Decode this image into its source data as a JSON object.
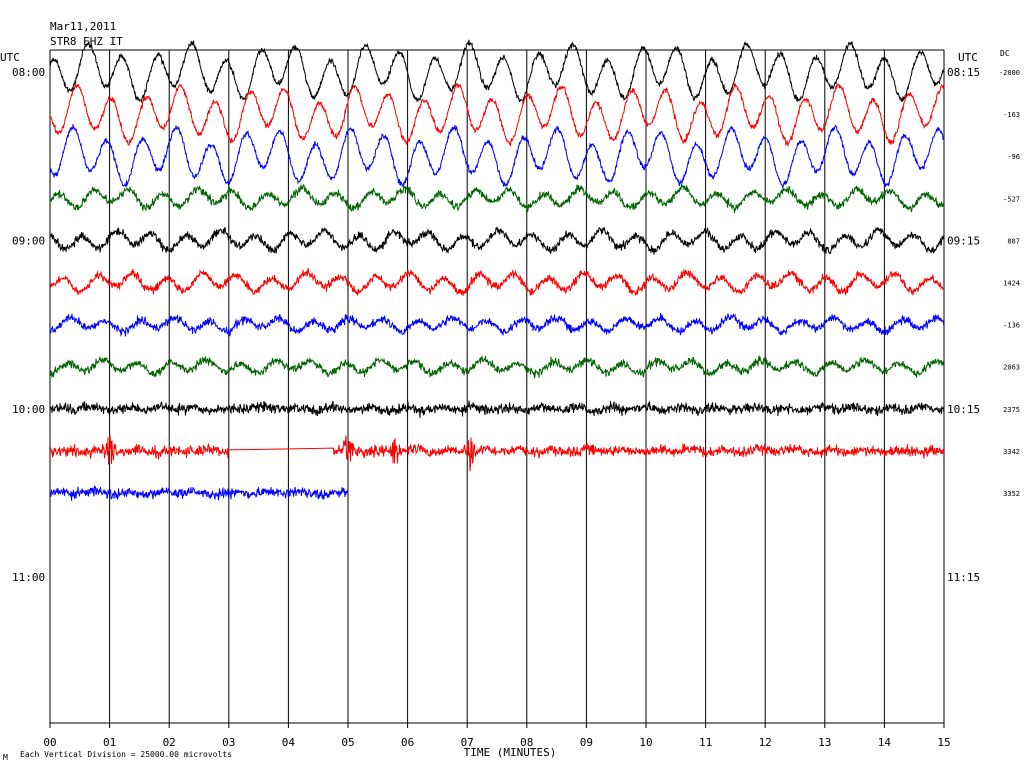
{
  "header": {
    "date": "Mar11,2011",
    "station": "STR8 EHZ IT"
  },
  "left_axis": {
    "unit": "UTC",
    "hour_labels": [
      "08:00",
      "09:00",
      "10:00",
      "11:00"
    ]
  },
  "right_axis": {
    "unit": "UTC",
    "hour_labels": [
      "08:15",
      "09:15",
      "10:15",
      "11:15"
    ],
    "dc_title": "DC",
    "dc_values": [
      "-2800",
      "-163",
      "-96",
      "-527",
      "887",
      "1424",
      "-136",
      "2063",
      "2375",
      "3342",
      "3352"
    ]
  },
  "x_axis": {
    "title": "TIME (MINUTES)",
    "ticks": [
      "00",
      "01",
      "02",
      "03",
      "04",
      "05",
      "06",
      "07",
      "08",
      "09",
      "10",
      "11",
      "12",
      "13",
      "14",
      "15"
    ]
  },
  "footer": {
    "scale_note": "Each Vertical Division = 25000.00 microvolts"
  },
  "colors": {
    "trace_cycle": [
      "#000000",
      "#ff0000",
      "#0000ff",
      "#006400"
    ],
    "grid": "#000000"
  },
  "chart_data": {
    "type": "line",
    "title": "STR8 EHZ IT",
    "subtitle": "Mar11,2011",
    "xlabel": "TIME (MINUTES)",
    "xlim": [
      0,
      15
    ],
    "rows_per_hour": 4,
    "minutes_per_row": 15,
    "series": [
      {
        "start_utc": "08:00",
        "color": "black",
        "dc_offset": -2800,
        "minutes_recorded": [
          0,
          15
        ],
        "activity": "large long-period oscillation"
      },
      {
        "start_utc": "08:15",
        "color": "red",
        "dc_offset": -163,
        "minutes_recorded": [
          0,
          15
        ],
        "activity": "large long-period oscillation"
      },
      {
        "start_utc": "08:30",
        "color": "blue",
        "dc_offset": -96,
        "minutes_recorded": [
          0,
          15
        ],
        "activity": "large long-period oscillation"
      },
      {
        "start_utc": "08:45",
        "color": "green",
        "dc_offset": -527,
        "minutes_recorded": [
          0,
          15
        ],
        "activity": "moderate oscillation"
      },
      {
        "start_utc": "09:00",
        "color": "black",
        "dc_offset": 887,
        "minutes_recorded": [
          0,
          15
        ],
        "activity": "moderate oscillation"
      },
      {
        "start_utc": "09:15",
        "color": "red",
        "dc_offset": 1424,
        "minutes_recorded": [
          0,
          15
        ],
        "activity": "moderate oscillation"
      },
      {
        "start_utc": "09:30",
        "color": "blue",
        "dc_offset": -136,
        "minutes_recorded": [
          0,
          15
        ],
        "activity": "low oscillation"
      },
      {
        "start_utc": "09:45",
        "color": "green",
        "dc_offset": 2063,
        "minutes_recorded": [
          0,
          15
        ],
        "activity": "low oscillation"
      },
      {
        "start_utc": "10:00",
        "color": "black",
        "dc_offset": 2375,
        "minutes_recorded": [
          0,
          15
        ],
        "activity": "background noise"
      },
      {
        "start_utc": "10:15",
        "color": "red",
        "dc_offset": 3342,
        "minutes_recorded": [
          0,
          15
        ],
        "data_gap_minutes": [
          3.0,
          4.75
        ],
        "spikes_minutes": [
          1.0,
          5.0,
          5.8,
          7.05
        ],
        "activity": "background noise with spikes"
      },
      {
        "start_utc": "10:30",
        "color": "blue",
        "dc_offset": 3352,
        "minutes_recorded": [
          0,
          5
        ],
        "activity": "background noise"
      }
    ]
  }
}
